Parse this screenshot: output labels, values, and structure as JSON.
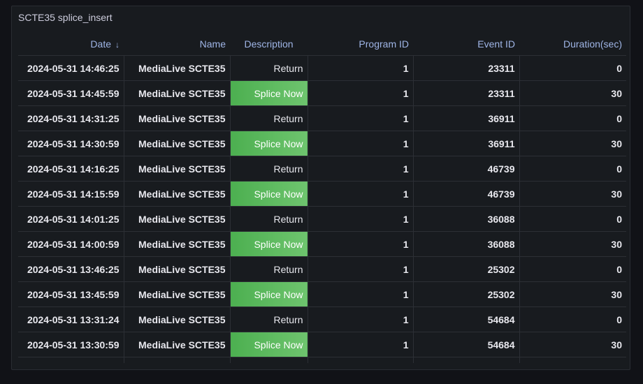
{
  "panel": {
    "title": "SCTE35 splice_insert"
  },
  "table": {
    "columns": [
      "Date",
      "Name",
      "Description",
      "Program ID",
      "Event ID",
      "Duration(sec)"
    ],
    "sort": {
      "column": "Date",
      "direction": "descending",
      "icon": "arrow-down-icon",
      "glyph": "↓"
    },
    "highlight_color": "#56b35a",
    "rows": [
      [
        "2024-05-31 14:46:25",
        "MediaLive SCTE35",
        "Return",
        "1",
        "23311",
        "0"
      ],
      [
        "2024-05-31 14:45:59",
        "MediaLive SCTE35",
        "Splice Now",
        "1",
        "23311",
        "30"
      ],
      [
        "2024-05-31 14:31:25",
        "MediaLive SCTE35",
        "Return",
        "1",
        "36911",
        "0"
      ],
      [
        "2024-05-31 14:30:59",
        "MediaLive SCTE35",
        "Splice Now",
        "1",
        "36911",
        "30"
      ],
      [
        "2024-05-31 14:16:25",
        "MediaLive SCTE35",
        "Return",
        "1",
        "46739",
        "0"
      ],
      [
        "2024-05-31 14:15:59",
        "MediaLive SCTE35",
        "Splice Now",
        "1",
        "46739",
        "30"
      ],
      [
        "2024-05-31 14:01:25",
        "MediaLive SCTE35",
        "Return",
        "1",
        "36088",
        "0"
      ],
      [
        "2024-05-31 14:00:59",
        "MediaLive SCTE35",
        "Splice Now",
        "1",
        "36088",
        "30"
      ],
      [
        "2024-05-31 13:46:25",
        "MediaLive SCTE35",
        "Return",
        "1",
        "25302",
        "0"
      ],
      [
        "2024-05-31 13:45:59",
        "MediaLive SCTE35",
        "Splice Now",
        "1",
        "25302",
        "30"
      ],
      [
        "2024-05-31 13:31:24",
        "MediaLive SCTE35",
        "Return",
        "1",
        "54684",
        "0"
      ],
      [
        "2024-05-31 13:30:59",
        "MediaLive SCTE35",
        "Splice Now",
        "1",
        "54684",
        "30"
      ]
    ]
  }
}
